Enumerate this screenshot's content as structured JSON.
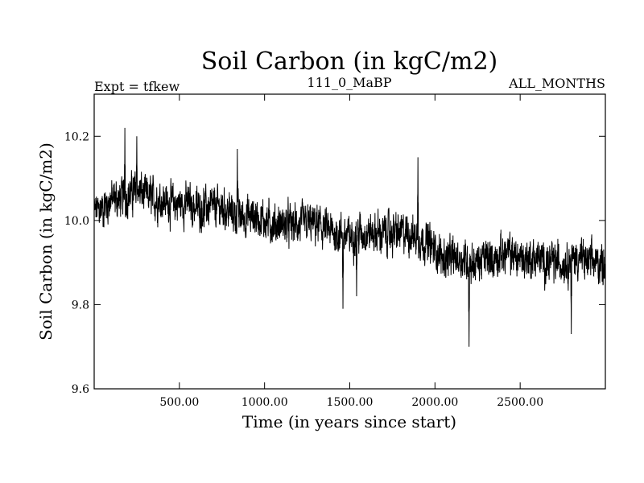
{
  "chart_data": {
    "type": "line",
    "title": "Soil Carbon (in kgC/m2)",
    "subtitle_left": "Expt = tfkew",
    "subtitle_center": "111_0_MaBP",
    "subtitle_right": "ALL_MONTHS",
    "xlabel": "Time (in years since start)",
    "ylabel": "Soil Carbon (in kgC/m2)",
    "xlim": [
      0,
      3000
    ],
    "ylim": [
      9.6,
      10.3
    ],
    "x_ticks": [
      500,
      1000,
      1500,
      2000,
      2500
    ],
    "x_tick_labels": [
      "500.00",
      "1000.00",
      "1500.00",
      "2000.00",
      "2500.00"
    ],
    "y_ticks": [
      9.6,
      9.8,
      10.0,
      10.2
    ],
    "y_tick_labels": [
      "9.6",
      "9.8",
      "10.0",
      "10.2"
    ],
    "grid": false,
    "line_color": "#000000",
    "series": [
      {
        "x": [
          0,
          50,
          100,
          150,
          200,
          250,
          300,
          350,
          400,
          450,
          500,
          550,
          600,
          650,
          700,
          750,
          800,
          850,
          900,
          950,
          1000,
          1050,
          1100,
          1150,
          1200,
          1250,
          1300,
          1350,
          1400,
          1450,
          1500,
          1550,
          1600,
          1650,
          1700,
          1750,
          1800,
          1850,
          1900,
          1950,
          2000,
          2050,
          2100,
          2150,
          2200,
          2250,
          2300,
          2350,
          2400,
          2450,
          2500,
          2550,
          2600,
          2650,
          2700,
          2750,
          2800,
          2850,
          2900,
          2950,
          3000
        ],
        "values": [
          10.02,
          10.03,
          10.05,
          10.05,
          10.06,
          10.07,
          10.06,
          10.05,
          10.05,
          10.04,
          10.04,
          10.04,
          10.03,
          10.03,
          10.03,
          10.03,
          10.02,
          10.01,
          10.01,
          10.01,
          10.0,
          9.99,
          9.99,
          9.99,
          9.99,
          9.99,
          9.99,
          9.98,
          9.97,
          9.97,
          9.96,
          9.97,
          9.97,
          9.97,
          9.97,
          9.97,
          9.97,
          9.97,
          9.96,
          9.95,
          9.93,
          9.91,
          9.91,
          9.91,
          9.9,
          9.9,
          9.91,
          9.91,
          9.92,
          9.92,
          9.91,
          9.91,
          9.91,
          9.9,
          9.9,
          9.9,
          9.91,
          9.91,
          9.9,
          9.9,
          9.9
        ],
        "spread": 0.06,
        "spikes": [
          {
            "x": 180,
            "y": 10.22
          },
          {
            "x": 250,
            "y": 10.2
          },
          {
            "x": 840,
            "y": 10.17
          },
          {
            "x": 1900,
            "y": 10.15
          },
          {
            "x": 1460,
            "y": 9.79
          },
          {
            "x": 1540,
            "y": 9.82
          },
          {
            "x": 2200,
            "y": 9.7
          },
          {
            "x": 2800,
            "y": 9.73
          }
        ]
      }
    ]
  }
}
